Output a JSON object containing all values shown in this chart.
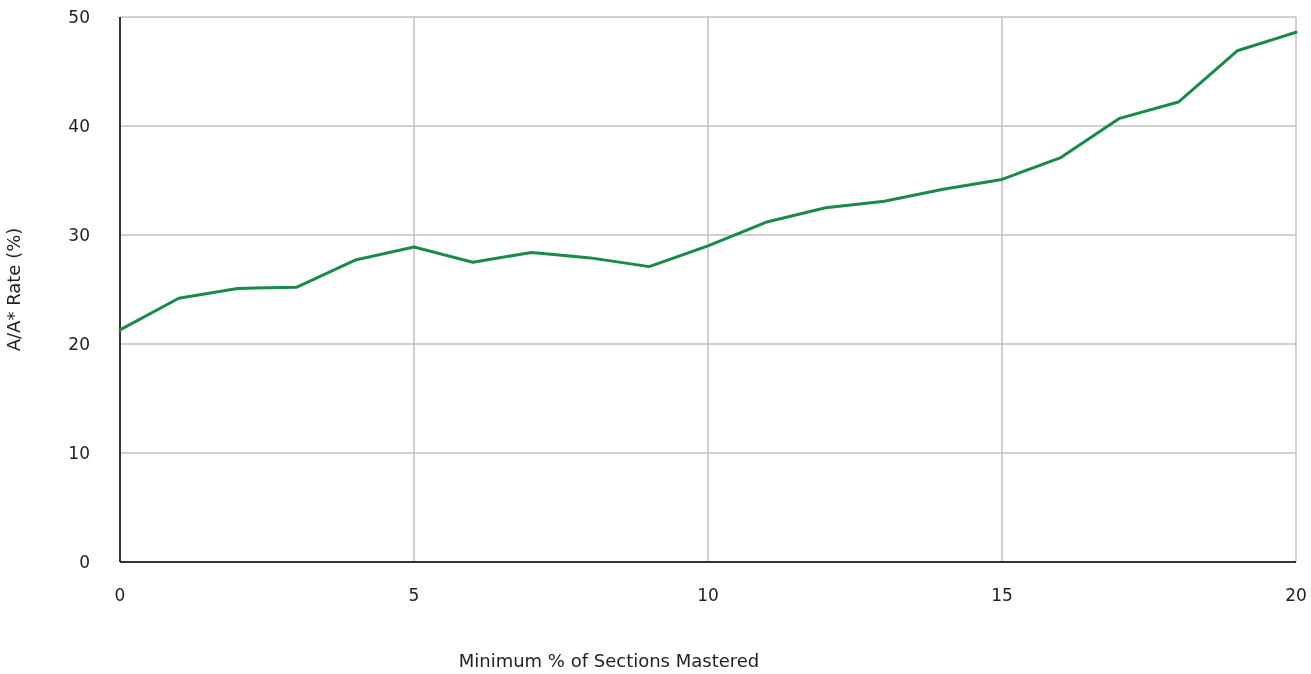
{
  "chart_data": {
    "type": "line",
    "xlabel": "Minimum % of Sections Mastered",
    "ylabel": "A/A* Rate (%)",
    "x": [
      0,
      1,
      2,
      3,
      4,
      5,
      6,
      7,
      8,
      9,
      10,
      11,
      12,
      13,
      14,
      15,
      16,
      17,
      18,
      19,
      20
    ],
    "series": [
      {
        "color": "#1a8a4a",
        "values": [
          21.3,
          24.2,
          25.1,
          25.2,
          27.7,
          28.9,
          27.5,
          28.4,
          27.9,
          27.1,
          29.0,
          31.2,
          32.5,
          33.1,
          34.2,
          35.1,
          37.1,
          40.7,
          42.2,
          46.9,
          48.6
        ]
      }
    ],
    "xlim": [
      0,
      20
    ],
    "xticks": [
      0,
      5,
      10,
      15,
      20
    ],
    "ylim": [
      0,
      50
    ],
    "yticks": [
      0,
      10,
      20,
      30,
      40,
      50
    ],
    "grid": true,
    "marker": "none",
    "line_style": "solid"
  }
}
